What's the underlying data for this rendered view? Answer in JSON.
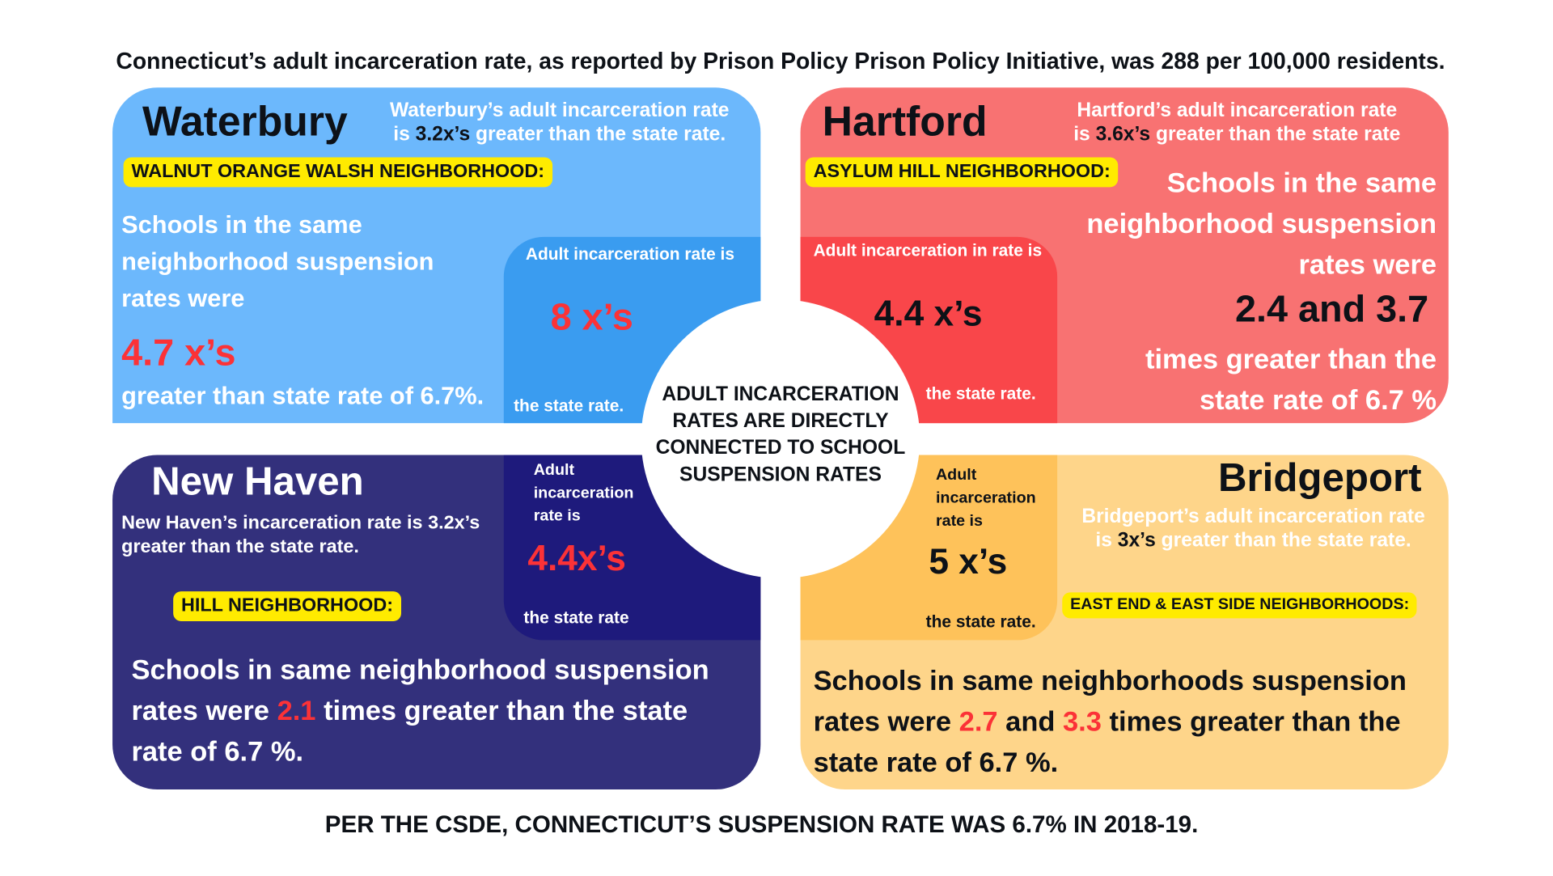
{
  "header": "Connecticut’s adult incarceration rate, as reported by Prison Policy Prison Policy Initiative, was 288 per 100,000 residents.",
  "footer": "PER THE CSDE, CONNECTICUT’S SUSPENSION RATE WAS 6.7% IN 2018-19.",
  "center": "ADULT INCARCERATION RATES ARE DIRECTLY CONNECTED TO SCHOOL SUSPENSION RATES",
  "colors": {
    "waterbury": "#6cb8fc",
    "waterbury_inner": "#3a9cf0",
    "hartford": "#f87272",
    "hartford_inner": "#f9464a",
    "newhaven": "#33307c",
    "newhaven_inner": "#1e1a7c",
    "bridgeport": "#fed58a",
    "bridgeport_inner": "#fec25a",
    "highlight": "#ffeb00",
    "accent_red": "#fb3237"
  },
  "waterbury": {
    "name": "Waterbury",
    "rate_a": "Waterbury’s adult incarceration rate",
    "rate_b": "is ",
    "rate_val": "3.2x’s",
    "rate_c": " greater than the state rate.",
    "neighborhood": "WALNUT ORANGE WALSH NEIGHBORHOOD:",
    "schools": "Schools in the same neighborhood suspension rates were",
    "multiple": "4.7 x’s",
    "schools_end": "greater than state rate of 6.7%.",
    "inner_label": "Adult incarceration rate is",
    "inner_value": "8 x’s",
    "inner_end": "the state rate."
  },
  "hartford": {
    "name": "Hartford",
    "rate_a": "Hartford’s adult incarceration rate",
    "rate_b": "is ",
    "rate_val": "3.6x’s",
    "rate_c": " greater than the state rate",
    "neighborhood": "ASYLUM HILL NEIGHBORHOOD:",
    "schools": "Schools in the same neighborhood suspension rates were",
    "multiple": "2.4 and 3.7",
    "schools_end": "times greater than the state rate of 6.7 %",
    "inner_label": "Adult incarceration in rate is",
    "inner_value": "4.4 x’s",
    "inner_end": "the state rate."
  },
  "newhaven": {
    "name": "New Haven",
    "rate": "New Haven’s incarceration rate is 3.2x’s greater than the state rate.",
    "neighborhood": "HILL NEIGHBORHOOD:",
    "schools_a": "Schools in same neighborhood suspension rates were ",
    "multiple": "2.1",
    "schools_b": " times greater than the state rate of 6.7 %.",
    "inner_label": "Adult incarceration rate is",
    "inner_value": "4.4x’s",
    "inner_end": "the state rate"
  },
  "bridgeport": {
    "name": "Bridgeport",
    "rate_a": "Bridgeport’s adult incarceration rate",
    "rate_b": "is ",
    "rate_val": "3x’s",
    "rate_c": " greater than the state rate.",
    "neighborhood": "EAST END & EAST SIDE NEIGHBORHOODS:",
    "schools_a": "Schools in same neighborhoods suspension rates were ",
    "multiple_a": "2.7",
    "and": " and ",
    "multiple_b": "3.3",
    "schools_b": " times greater than the state rate of 6.7 %.",
    "inner_label": "Adult incarceration rate is",
    "inner_value": "5 x’s",
    "inner_end": "the state rate."
  }
}
